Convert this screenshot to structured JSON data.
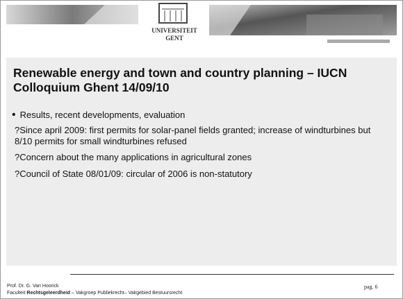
{
  "header": {
    "logo_line1": "UNIVERSITEIT",
    "logo_line2": "GENT"
  },
  "title": "Renewable energy and town and country planning – IUCN Colloquium Ghent 14/09/10",
  "bullet": "Results, recent developments, evaluation",
  "sub_items": [
    "?Since april 2009: first permits for solar-panel fields granted; increase of windturbines but 8/10 permits for small windturbines refused",
    "?Concern about the many applications in agricultural zones",
    "?Council of State 08/01/09: circular of 2006 is non-statutory"
  ],
  "footer": {
    "author": "Prof. Dr. G. Van Hoorick",
    "faculty_prefix": "Faculteit ",
    "faculty_name": "Rechtsgeleerdheid",
    "faculty_rest": " – Vakgroep Publiekrecht– Vakgebied Bestuursrecht",
    "page": "pag. 6"
  }
}
